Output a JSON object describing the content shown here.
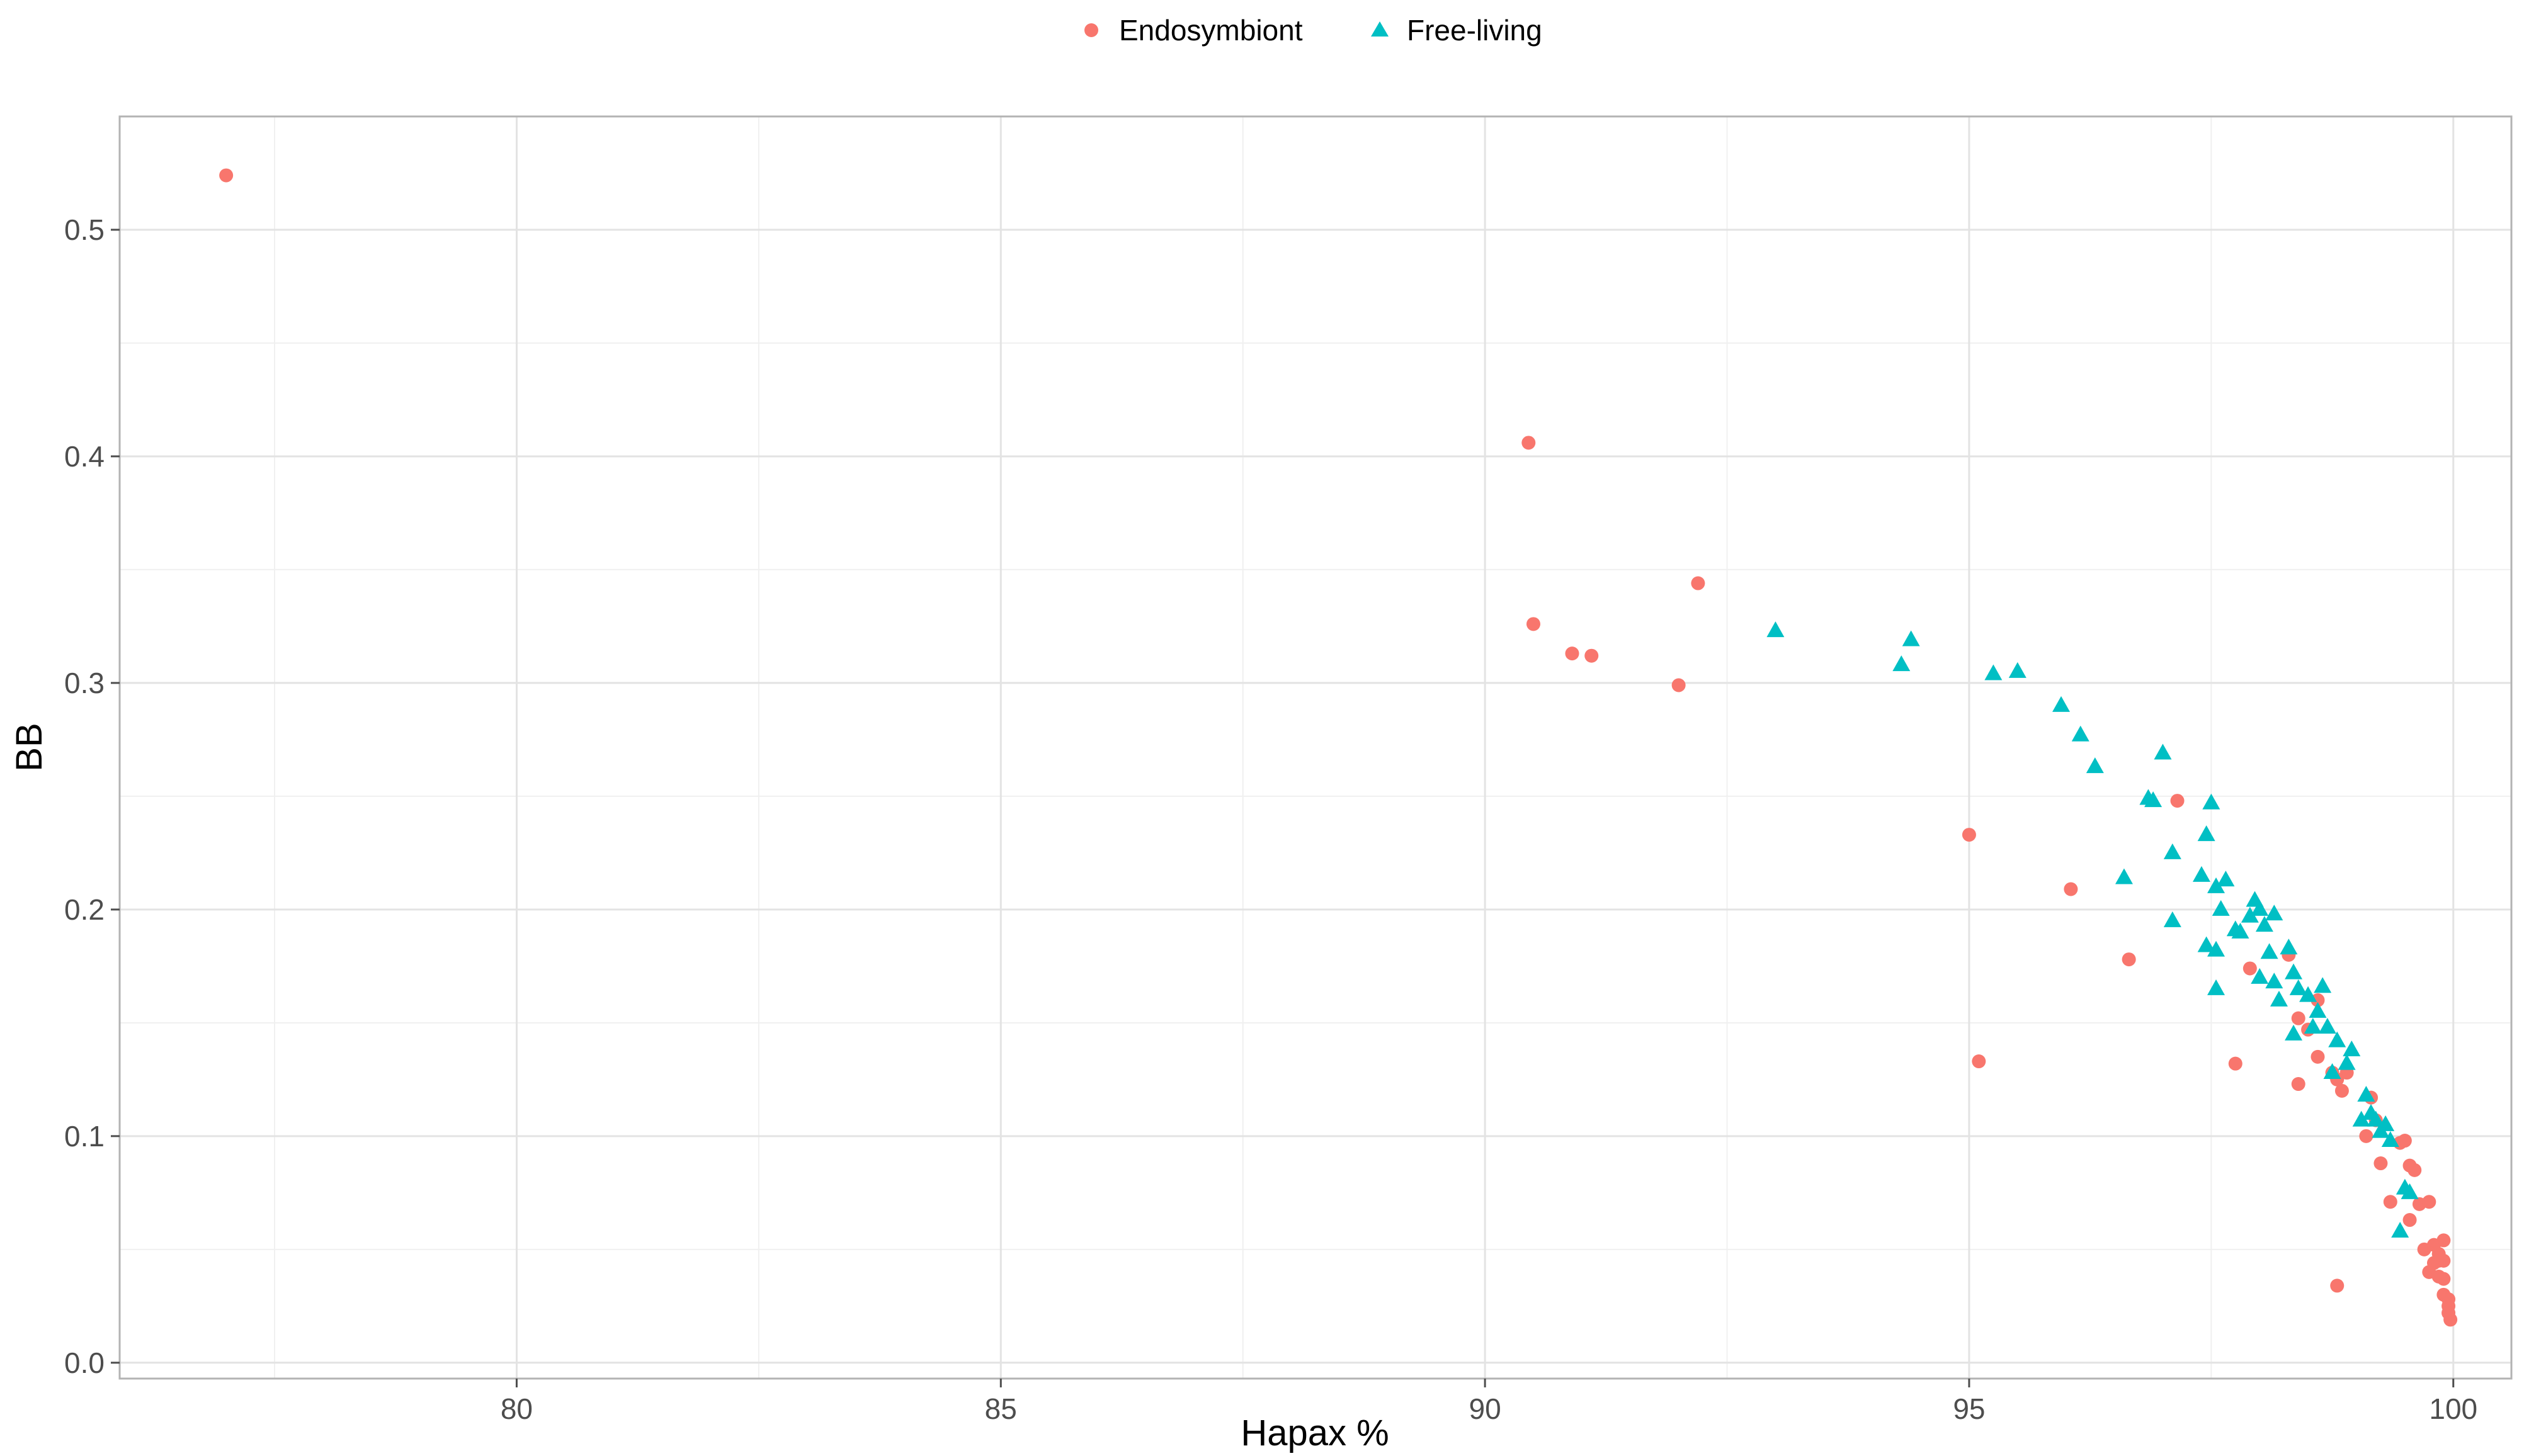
{
  "chart_data": {
    "type": "scatter",
    "xlabel": "Hapax %",
    "ylabel": "BB",
    "xlim": [
      75.9,
      100.6
    ],
    "ylim": [
      -0.007,
      0.55
    ],
    "x_ticks": [
      80,
      85,
      90,
      95,
      100
    ],
    "x_tick_labels": [
      "80",
      "85",
      "90",
      "95",
      "100"
    ],
    "y_ticks": [
      0.0,
      0.1,
      0.2,
      0.3,
      0.4,
      0.5
    ],
    "y_tick_labels": [
      "0.0",
      "0.1",
      "0.2",
      "0.3",
      "0.4",
      "0.5"
    ],
    "x_minor_ticks": [
      77.5,
      82.5,
      87.5,
      92.5,
      97.5
    ],
    "y_minor_ticks": [
      0.05,
      0.15,
      0.25,
      0.35,
      0.45
    ],
    "grid": true,
    "legend_position": "top",
    "series": [
      {
        "name": "Endosymbiont",
        "shape": "circle",
        "color": "#F8766D",
        "x": [
          77.0,
          90.45,
          90.5,
          90.9,
          91.1,
          92.0,
          92.2,
          95.0,
          95.1,
          96.05,
          96.65,
          97.15,
          97.75,
          97.9,
          98.3,
          98.4,
          98.4,
          98.5,
          98.6,
          98.6,
          98.75,
          98.8,
          98.8,
          98.85,
          98.9,
          99.1,
          99.15,
          99.2,
          99.25,
          99.35,
          99.45,
          99.5,
          99.55,
          99.55,
          99.6,
          99.65,
          99.7,
          99.75,
          99.75,
          99.8,
          99.8,
          99.85,
          99.85,
          99.85,
          99.9,
          99.9,
          99.9,
          99.9,
          99.95,
          99.95,
          99.95,
          99.97
        ],
        "y": [
          0.524,
          0.406,
          0.326,
          0.313,
          0.312,
          0.299,
          0.344,
          0.233,
          0.133,
          0.209,
          0.178,
          0.248,
          0.132,
          0.174,
          0.18,
          0.123,
          0.152,
          0.147,
          0.16,
          0.135,
          0.128,
          0.125,
          0.034,
          0.12,
          0.128,
          0.1,
          0.117,
          0.107,
          0.088,
          0.071,
          0.097,
          0.098,
          0.087,
          0.063,
          0.085,
          0.07,
          0.05,
          0.04,
          0.071,
          0.044,
          0.052,
          0.038,
          0.045,
          0.048,
          0.054,
          0.03,
          0.037,
          0.045,
          0.025,
          0.028,
          0.022,
          0.019
        ]
      },
      {
        "name": "Free-living",
        "shape": "triangle",
        "color": "#00BFC4",
        "x": [
          93.0,
          94.3,
          94.4,
          95.25,
          95.5,
          95.95,
          96.15,
          96.3,
          96.6,
          96.85,
          96.9,
          97.0,
          97.1,
          97.1,
          97.4,
          97.45,
          97.45,
          97.5,
          97.55,
          97.55,
          97.55,
          97.6,
          97.65,
          97.75,
          97.8,
          97.9,
          97.95,
          98.0,
          98.0,
          98.05,
          98.1,
          98.15,
          98.15,
          98.2,
          98.3,
          98.35,
          98.35,
          98.4,
          98.5,
          98.55,
          98.6,
          98.65,
          98.7,
          98.75,
          98.8,
          98.9,
          98.95,
          99.05,
          99.1,
          99.15,
          99.2,
          99.25,
          99.3,
          99.35,
          99.45,
          99.5,
          99.55
        ],
        "y": [
          0.323,
          0.308,
          0.319,
          0.304,
          0.305,
          0.29,
          0.277,
          0.263,
          0.214,
          0.249,
          0.248,
          0.269,
          0.225,
          0.195,
          0.215,
          0.233,
          0.184,
          0.247,
          0.182,
          0.165,
          0.21,
          0.2,
          0.213,
          0.191,
          0.19,
          0.197,
          0.204,
          0.2,
          0.17,
          0.193,
          0.181,
          0.198,
          0.168,
          0.16,
          0.183,
          0.145,
          0.172,
          0.165,
          0.162,
          0.148,
          0.155,
          0.166,
          0.148,
          0.128,
          0.142,
          0.132,
          0.138,
          0.107,
          0.118,
          0.11,
          0.107,
          0.102,
          0.105,
          0.098,
          0.058,
          0.077,
          0.075
        ]
      }
    ]
  }
}
